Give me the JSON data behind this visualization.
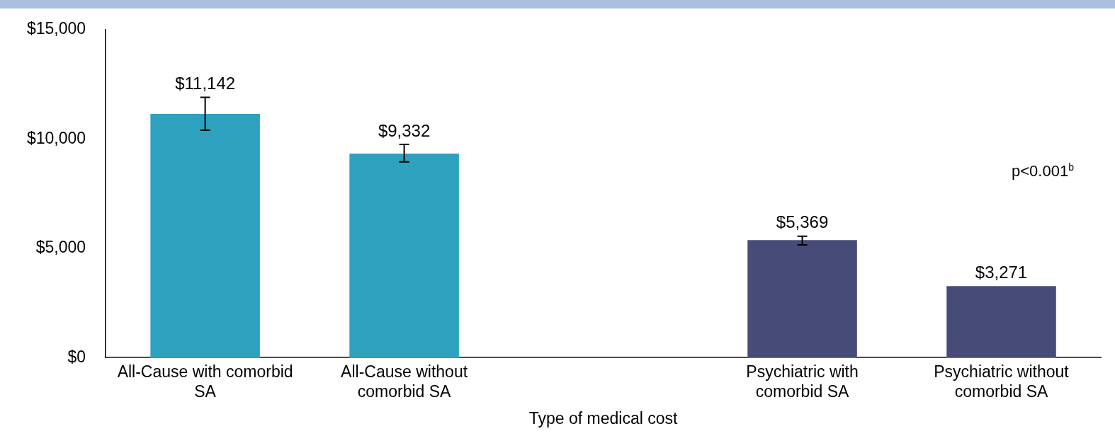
{
  "chart_data": {
    "type": "bar",
    "xlabel": "Type of medical cost",
    "categories": [
      "All-Cause with comorbid SA",
      "All-Cause without comorbid SA",
      null,
      "Psychiatric with comorbid SA",
      "Psychiatric without comorbid SA"
    ],
    "values": [
      11142,
      9332,
      null,
      5369,
      3271
    ],
    "colors": [
      "#2ea1bf",
      "#2ea1bf",
      null,
      "#474b77",
      "#474b77"
    ],
    "errors": [
      [
        10400,
        11900
      ],
      [
        8950,
        9750
      ],
      null,
      [
        5150,
        5550
      ],
      null
    ],
    "value_labels": [
      "$11,142",
      "$9,332",
      null,
      "$5,369",
      "$3,271"
    ],
    "ylim": [
      0,
      15000
    ],
    "yticks": [
      {
        "value": 0,
        "label": "$0"
      },
      {
        "value": 5000,
        "label": "$5,000"
      },
      {
        "value": 10000,
        "label": "$10,000"
      },
      {
        "value": 15000,
        "label": "$15,000"
      }
    ],
    "grid": false,
    "legend": false,
    "annotations": [
      "p<0.001$^{b}$"
    ]
  }
}
